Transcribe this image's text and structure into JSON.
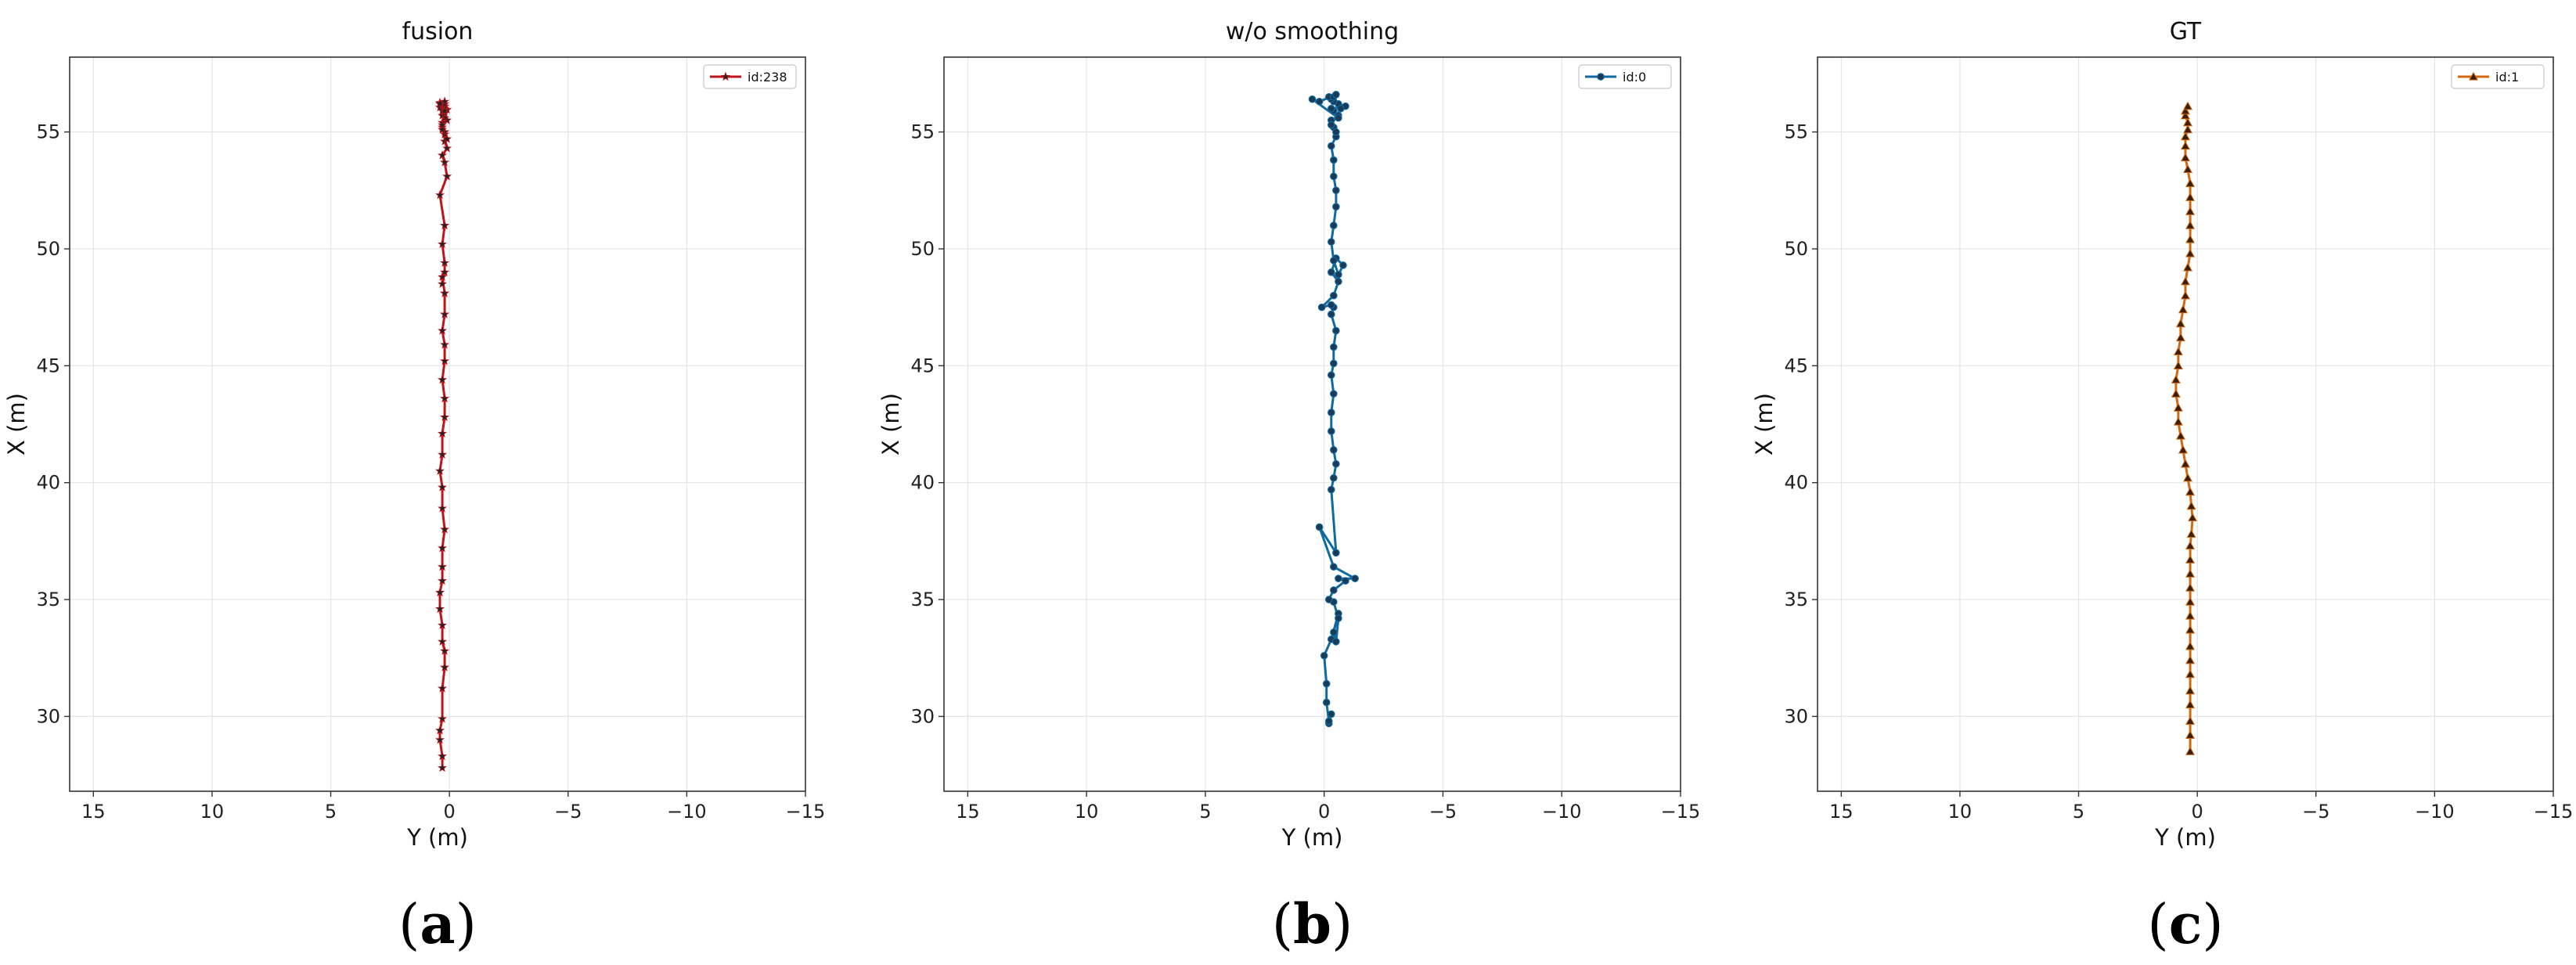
{
  "chart_data": [
    {
      "type": "line",
      "panel_label": "a",
      "title": "fusion",
      "xlabel": "Y (m)",
      "ylabel": "X (m)",
      "xlim": [
        16,
        -15
      ],
      "ylim": [
        26.8,
        58.2
      ],
      "x_ticks": [
        15,
        10,
        5,
        0,
        -5,
        -10,
        -15
      ],
      "x_tick_labels": [
        "15",
        "10",
        "5",
        "0",
        "−5",
        "−10",
        "−15"
      ],
      "y_ticks": [
        30,
        35,
        40,
        45,
        50,
        55
      ],
      "y_tick_labels": [
        "30",
        "35",
        "40",
        "45",
        "50",
        "55"
      ],
      "grid": true,
      "legend_position": "top-right",
      "series": [
        {
          "name": "id:238",
          "color": "#c0141c",
          "marker": "star",
          "marker_color": "#222222",
          "x": [
            0.3,
            0.3,
            0.4,
            0.4,
            0.3,
            0.3,
            0.2,
            0.2,
            0.3,
            0.3,
            0.4,
            0.4,
            0.3,
            0.3,
            0.3,
            0.2,
            0.3,
            0.3,
            0.4,
            0.3,
            0.3,
            0.2,
            0.2,
            0.3,
            0.2,
            0.2,
            0.3,
            0.2,
            0.2,
            0.3,
            0.3,
            0.2,
            0.2,
            0.3,
            0.2,
            0.4,
            0.1,
            0.2,
            0.3,
            0.1,
            0.2,
            0.2,
            0.2,
            0.3,
            0.3,
            0.1,
            0.2,
            0.3,
            0.2,
            0.3,
            0.1,
            0.2,
            0.4,
            0.2,
            0.3,
            0.2,
            0.4,
            0.2,
            0.3,
            0.1,
            0.3,
            0.2,
            0.4
          ],
          "y": [
            27.8,
            28.3,
            29.0,
            29.4,
            29.9,
            31.2,
            32.1,
            32.8,
            33.2,
            33.9,
            34.6,
            35.3,
            35.8,
            36.4,
            37.2,
            38.0,
            38.9,
            39.8,
            40.5,
            41.2,
            42.1,
            42.8,
            43.6,
            44.4,
            45.2,
            45.9,
            46.5,
            47.2,
            48.1,
            48.8,
            48.5,
            49.0,
            49.4,
            50.2,
            51.0,
            52.3,
            53.1,
            53.7,
            54.0,
            54.3,
            54.6,
            54.9,
            55.0,
            55.2,
            55.4,
            55.5,
            55.6,
            55.7,
            55.8,
            55.9,
            55.95,
            56.0,
            56.05,
            56.1,
            56.15,
            56.2,
            56.25,
            56.3,
            55.1,
            54.7,
            55.3,
            55.9,
            56.2
          ]
        }
      ]
    },
    {
      "type": "line",
      "panel_label": "b",
      "title": "w/o smoothing",
      "xlabel": "Y (m)",
      "ylabel": "X (m)",
      "xlim": [
        16,
        -15
      ],
      "ylim": [
        26.8,
        58.2
      ],
      "x_ticks": [
        15,
        10,
        5,
        0,
        -5,
        -10,
        -15
      ],
      "x_tick_labels": [
        "15",
        "10",
        "5",
        "0",
        "−5",
        "−10",
        "−15"
      ],
      "y_ticks": [
        30,
        35,
        40,
        45,
        50,
        55
      ],
      "y_tick_labels": [
        "30",
        "35",
        "40",
        "45",
        "50",
        "55"
      ],
      "grid": true,
      "legend_position": "top-right",
      "series": [
        {
          "name": "id:0",
          "color": "#0f6aa0",
          "marker": "circle",
          "marker_color": "#1b3a55",
          "x": [
            -0.2,
            -0.3,
            -0.2,
            -0.1,
            -0.1,
            0.0,
            -0.3,
            -0.6,
            -0.4,
            -0.5,
            -0.6,
            -0.4,
            -0.2,
            -0.4,
            -0.9,
            -0.6,
            -1.3,
            -0.4,
            0.2,
            -0.5,
            -0.3,
            -0.4,
            -0.5,
            -0.4,
            -0.3,
            -0.3,
            -0.4,
            -0.3,
            -0.4,
            -0.4,
            -0.5,
            -0.3,
            -0.4,
            -0.3,
            0.1,
            -0.4,
            -0.6,
            -0.3,
            -0.5,
            -0.8,
            -0.6,
            -0.4,
            -0.3,
            -0.4,
            -0.5,
            -0.5,
            -0.4,
            -0.4,
            -0.3,
            -0.5,
            -0.4,
            -0.3,
            -0.6,
            -0.4,
            -0.3,
            -0.9,
            -0.6,
            -0.4,
            -0.3,
            -0.2,
            -0.4,
            -0.5,
            0.2,
            0.5,
            -0.6,
            -0.7,
            -0.3,
            -0.5
          ],
          "y": [
            29.7,
            30.1,
            29.8,
            30.6,
            31.4,
            32.6,
            33.3,
            34.4,
            33.6,
            33.2,
            34.2,
            34.9,
            35.0,
            35.4,
            35.8,
            35.9,
            35.9,
            36.4,
            38.1,
            37.0,
            39.7,
            40.2,
            40.8,
            41.4,
            42.2,
            43.0,
            43.8,
            44.6,
            45.1,
            45.8,
            46.5,
            47.2,
            47.5,
            47.6,
            47.5,
            48.0,
            48.6,
            49.0,
            49.6,
            49.3,
            48.9,
            49.5,
            50.3,
            51.0,
            51.8,
            52.5,
            53.1,
            53.8,
            54.4,
            54.8,
            55.2,
            55.5,
            55.7,
            55.9,
            56.0,
            56.1,
            56.2,
            56.3,
            56.4,
            56.5,
            56.5,
            56.6,
            56.3,
            56.4,
            55.6,
            56.0,
            55.3,
            55.0
          ]
        }
      ]
    },
    {
      "type": "line",
      "panel_label": "c",
      "title": "GT",
      "xlabel": "Y (m)",
      "ylabel": "X (m)",
      "xlim": [
        16,
        -15
      ],
      "ylim": [
        26.8,
        58.2
      ],
      "x_ticks": [
        15,
        10,
        5,
        0,
        -5,
        -10,
        -15
      ],
      "x_tick_labels": [
        "15",
        "10",
        "5",
        "0",
        "−5",
        "−10",
        "−15"
      ],
      "y_ticks": [
        30,
        35,
        40,
        45,
        50,
        55
      ],
      "y_tick_labels": [
        "30",
        "35",
        "40",
        "45",
        "50",
        "55"
      ],
      "grid": true,
      "legend_position": "top-right",
      "series": [
        {
          "name": "id:1",
          "color": "#d2690e",
          "marker": "triangle",
          "marker_color": "#3a1e08",
          "x": [
            0.3,
            0.3,
            0.3,
            0.3,
            0.3,
            0.3,
            0.3,
            0.3,
            0.3,
            0.3,
            0.3,
            0.3,
            0.3,
            0.3,
            0.3,
            0.25,
            0.2,
            0.25,
            0.3,
            0.4,
            0.5,
            0.6,
            0.7,
            0.8,
            0.8,
            0.9,
            0.9,
            0.8,
            0.8,
            0.7,
            0.7,
            0.6,
            0.5,
            0.5,
            0.4,
            0.3,
            0.3,
            0.3,
            0.3,
            0.3,
            0.3,
            0.4,
            0.5,
            0.5,
            0.5,
            0.4,
            0.4,
            0.5,
            0.5,
            0.4
          ],
          "y": [
            28.5,
            29.2,
            29.8,
            30.5,
            31.1,
            31.8,
            32.4,
            33.0,
            33.7,
            34.3,
            34.9,
            35.5,
            36.1,
            36.7,
            37.3,
            37.8,
            38.5,
            39.0,
            39.6,
            40.2,
            40.8,
            41.4,
            42.0,
            42.6,
            43.2,
            43.8,
            44.4,
            45.0,
            45.6,
            46.2,
            46.8,
            47.4,
            48.0,
            48.6,
            49.2,
            49.8,
            50.4,
            51.0,
            51.6,
            52.2,
            52.8,
            53.4,
            53.9,
            54.4,
            54.8,
            55.1,
            55.4,
            55.7,
            55.9,
            56.1
          ]
        }
      ]
    }
  ]
}
